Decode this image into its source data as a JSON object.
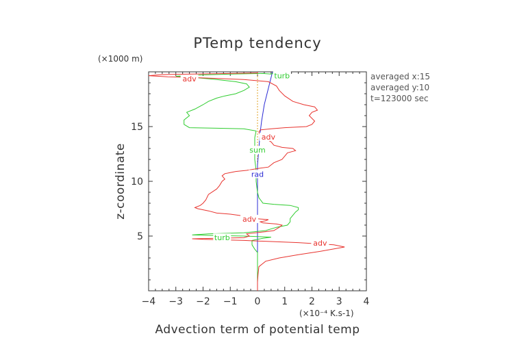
{
  "chart_data": {
    "type": "line",
    "title": "PTemp tendency",
    "xlabel": "Advection term of potential temp",
    "x_unit": "(×10⁻⁴ K.s-1)",
    "ylabel": "z-coordinate",
    "y_unit": "(×1000 m)",
    "xlim": [
      -4,
      4
    ],
    "ylim": [
      0,
      20
    ],
    "xticks": [
      "−4",
      "−3",
      "−2",
      "−1",
      "0",
      "1",
      "2",
      "3",
      "4"
    ],
    "yticks": [
      "5",
      "10",
      "15"
    ],
    "info_lines": [
      "averaged  x:15",
      "averaged  y:10",
      "t=123000 sec"
    ],
    "series": [
      {
        "name": "adv",
        "color": "#e8322d",
        "points": [
          [
            0,
            0.0
          ],
          [
            0,
            0.8
          ],
          [
            0.02,
            1.5
          ],
          [
            0.05,
            2.2
          ],
          [
            0.3,
            2.7
          ],
          [
            0.8,
            3.0
          ],
          [
            1.5,
            3.3
          ],
          [
            2.3,
            3.6
          ],
          [
            3.2,
            4.0
          ],
          [
            2.8,
            4.2
          ],
          [
            1.5,
            4.4
          ],
          [
            0.5,
            4.5
          ],
          [
            -0.5,
            4.6
          ],
          [
            -1.2,
            4.65
          ],
          [
            -2.0,
            4.7
          ],
          [
            -2.4,
            4.75
          ],
          [
            -1.5,
            4.8
          ],
          [
            -0.5,
            4.85
          ],
          [
            -0.3,
            5.0
          ],
          [
            -0.4,
            5.2
          ],
          [
            0.3,
            5.4
          ],
          [
            0.6,
            5.5
          ],
          [
            0.8,
            5.8
          ],
          [
            0.9,
            6.0
          ],
          [
            0.7,
            6.1
          ],
          [
            0.2,
            6.2
          ],
          [
            0.1,
            6.3
          ],
          [
            0.3,
            6.4
          ],
          [
            0.4,
            6.5
          ],
          [
            -0.1,
            6.6
          ],
          [
            -0.4,
            6.8
          ],
          [
            -1.0,
            7.0
          ],
          [
            -1.5,
            7.1
          ],
          [
            -1.8,
            7.3
          ],
          [
            -2.2,
            7.5
          ],
          [
            -2.3,
            7.6
          ],
          [
            -2.1,
            7.8
          ],
          [
            -2.0,
            8.0
          ],
          [
            -1.9,
            8.3
          ],
          [
            -1.8,
            8.8
          ],
          [
            -1.5,
            9.3
          ],
          [
            -1.4,
            9.6
          ],
          [
            -1.3,
            10.0
          ],
          [
            -1.2,
            10.2
          ],
          [
            -1.3,
            10.5
          ],
          [
            -1.2,
            10.7
          ],
          [
            -1.0,
            10.8
          ],
          [
            -0.8,
            10.9
          ],
          [
            -0.4,
            11.0
          ],
          [
            0.1,
            11.2
          ],
          [
            0.4,
            11.3
          ],
          [
            0.5,
            11.5
          ],
          [
            0.6,
            11.7
          ],
          [
            0.9,
            12.0
          ],
          [
            1.0,
            12.3
          ],
          [
            1.1,
            12.6
          ],
          [
            1.4,
            12.8
          ],
          [
            1.3,
            13.0
          ],
          [
            0.9,
            13.1
          ],
          [
            0.6,
            13.3
          ],
          [
            0.5,
            13.6
          ],
          [
            0.3,
            13.9
          ],
          [
            0.1,
            14.2
          ],
          [
            0.05,
            14.5
          ],
          [
            0.1,
            14.7
          ],
          [
            0.5,
            14.8
          ],
          [
            1.0,
            14.9
          ],
          [
            1.8,
            15.0
          ],
          [
            2.0,
            15.2
          ],
          [
            2.1,
            15.5
          ],
          [
            1.9,
            16.0
          ],
          [
            2.0,
            16.3
          ],
          [
            2.2,
            16.5
          ],
          [
            2.1,
            16.8
          ],
          [
            1.7,
            17.0
          ],
          [
            1.3,
            17.3
          ],
          [
            1.0,
            17.8
          ],
          [
            0.8,
            18.3
          ],
          [
            0.7,
            18.7
          ],
          [
            0.4,
            19.1
          ],
          [
            -0.5,
            19.3
          ],
          [
            -1.5,
            19.4
          ],
          [
            -2.6,
            19.5
          ],
          [
            -3.3,
            19.55
          ],
          [
            -4.0,
            19.65
          ],
          [
            -3.5,
            19.75
          ],
          [
            -2.4,
            19.8
          ],
          [
            -1.0,
            19.85
          ],
          [
            0,
            19.9
          ],
          [
            0,
            20.0
          ]
        ]
      },
      {
        "name": "turb",
        "color": "#2ecc2e",
        "points": [
          [
            0,
            0.0
          ],
          [
            0,
            2.5
          ],
          [
            0,
            3.5
          ],
          [
            -0.1,
            3.8
          ],
          [
            -0.2,
            4.2
          ],
          [
            -0.2,
            4.6
          ],
          [
            0.2,
            4.8
          ],
          [
            0.5,
            4.9
          ],
          [
            -0.5,
            5.0
          ],
          [
            -1.5,
            5.05
          ],
          [
            -2.4,
            5.1
          ],
          [
            -1.8,
            5.2
          ],
          [
            -0.5,
            5.3
          ],
          [
            0.3,
            5.5
          ],
          [
            0.7,
            5.8
          ],
          [
            1.1,
            6.0
          ],
          [
            1.2,
            6.3
          ],
          [
            1.2,
            6.6
          ],
          [
            1.3,
            6.9
          ],
          [
            1.4,
            7.2
          ],
          [
            1.5,
            7.4
          ],
          [
            1.5,
            7.6
          ],
          [
            1.2,
            7.8
          ],
          [
            0.6,
            7.9
          ],
          [
            0.2,
            8.0
          ],
          [
            0.05,
            8.5
          ],
          [
            0.0,
            9.0
          ],
          [
            -0.05,
            10.0
          ],
          [
            -0.05,
            11.0
          ],
          [
            -0.1,
            12.0
          ],
          [
            -0.1,
            13.0
          ],
          [
            -0.1,
            14.0
          ],
          [
            -0.05,
            14.6
          ],
          [
            -0.5,
            14.8
          ],
          [
            -1.5,
            14.85
          ],
          [
            -2.5,
            14.9
          ],
          [
            -2.7,
            15.2
          ],
          [
            -2.7,
            15.6
          ],
          [
            -2.5,
            16.0
          ],
          [
            -2.6,
            16.3
          ],
          [
            -2.3,
            16.6
          ],
          [
            -2.0,
            17.0
          ],
          [
            -1.8,
            17.3
          ],
          [
            -1.5,
            17.6
          ],
          [
            -1.2,
            17.8
          ],
          [
            -0.8,
            18.0
          ],
          [
            -0.5,
            18.3
          ],
          [
            -0.3,
            18.6
          ],
          [
            -0.4,
            18.9
          ],
          [
            -0.8,
            19.1
          ],
          [
            -1.5,
            19.3
          ],
          [
            -2.4,
            19.5
          ],
          [
            -3.0,
            19.6
          ],
          [
            -2.2,
            19.7
          ],
          [
            -1.0,
            19.8
          ],
          [
            0.2,
            19.85
          ],
          [
            0.5,
            19.8
          ],
          [
            0.6,
            19.9
          ],
          [
            0.6,
            20.0
          ]
        ]
      },
      {
        "name": "rad",
        "color": "#2b2bd4",
        "points": [
          [
            0,
            0.0
          ],
          [
            0,
            2.0
          ],
          [
            0,
            4.0
          ],
          [
            0,
            6.0
          ],
          [
            0,
            8.0
          ],
          [
            0,
            10.0
          ],
          [
            0,
            11.5
          ],
          [
            0.05,
            13.0
          ],
          [
            0.1,
            14.5
          ],
          [
            0.15,
            15.5
          ],
          [
            0.25,
            17.0
          ],
          [
            0.35,
            18.0
          ],
          [
            0.45,
            19.0
          ],
          [
            0.55,
            20.0
          ]
        ]
      },
      {
        "name": "sum",
        "color": "#e0a020",
        "points": [
          [
            0,
            0.0
          ],
          [
            0,
            20.0
          ]
        ]
      }
    ],
    "curve_labels": [
      {
        "text": "adv",
        "x": -2.5,
        "y": 19.3,
        "color": "#e8322d"
      },
      {
        "text": "adv",
        "x": 0.4,
        "y": 14.0,
        "color": "#e8322d"
      },
      {
        "text": "adv",
        "x": -0.3,
        "y": 6.5,
        "color": "#e8322d"
      },
      {
        "text": "adv",
        "x": 2.3,
        "y": 4.3,
        "color": "#e8322d"
      },
      {
        "text": "turb",
        "x": 0.9,
        "y": 19.6,
        "color": "#2ecc2e"
      },
      {
        "text": "turb",
        "x": -1.3,
        "y": 4.8,
        "color": "#2ecc2e"
      },
      {
        "text": "sum",
        "x": 0.0,
        "y": 12.8,
        "color": "#2ecc2e"
      },
      {
        "text": "rad",
        "x": 0.0,
        "y": 10.6,
        "color": "#2b2bd4"
      }
    ]
  }
}
